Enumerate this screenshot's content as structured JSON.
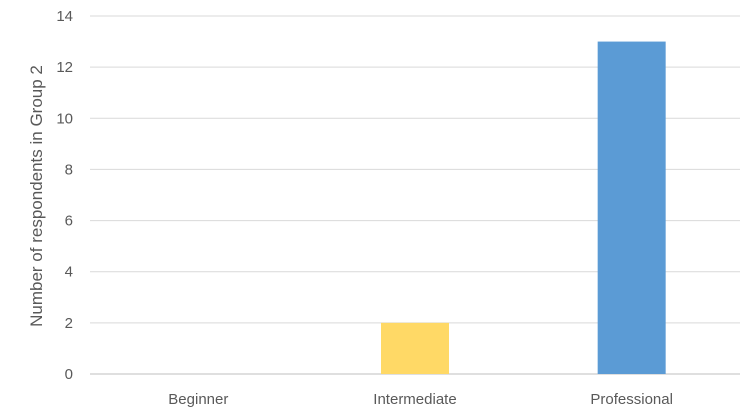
{
  "chart_data": {
    "type": "bar",
    "title": "",
    "xlabel": "",
    "ylabel": "Number of respondents in Group 2",
    "categories": [
      "Beginner",
      "Intermediate",
      "Professional"
    ],
    "values": [
      0,
      2,
      13
    ],
    "bar_colors": [
      "#5B9BD5",
      "#FFD966",
      "#5B9BD5"
    ],
    "ylim": [
      0,
      14
    ],
    "yticks": [
      0,
      2,
      4,
      6,
      8,
      10,
      12,
      14
    ],
    "grid": true,
    "legend": "none"
  }
}
